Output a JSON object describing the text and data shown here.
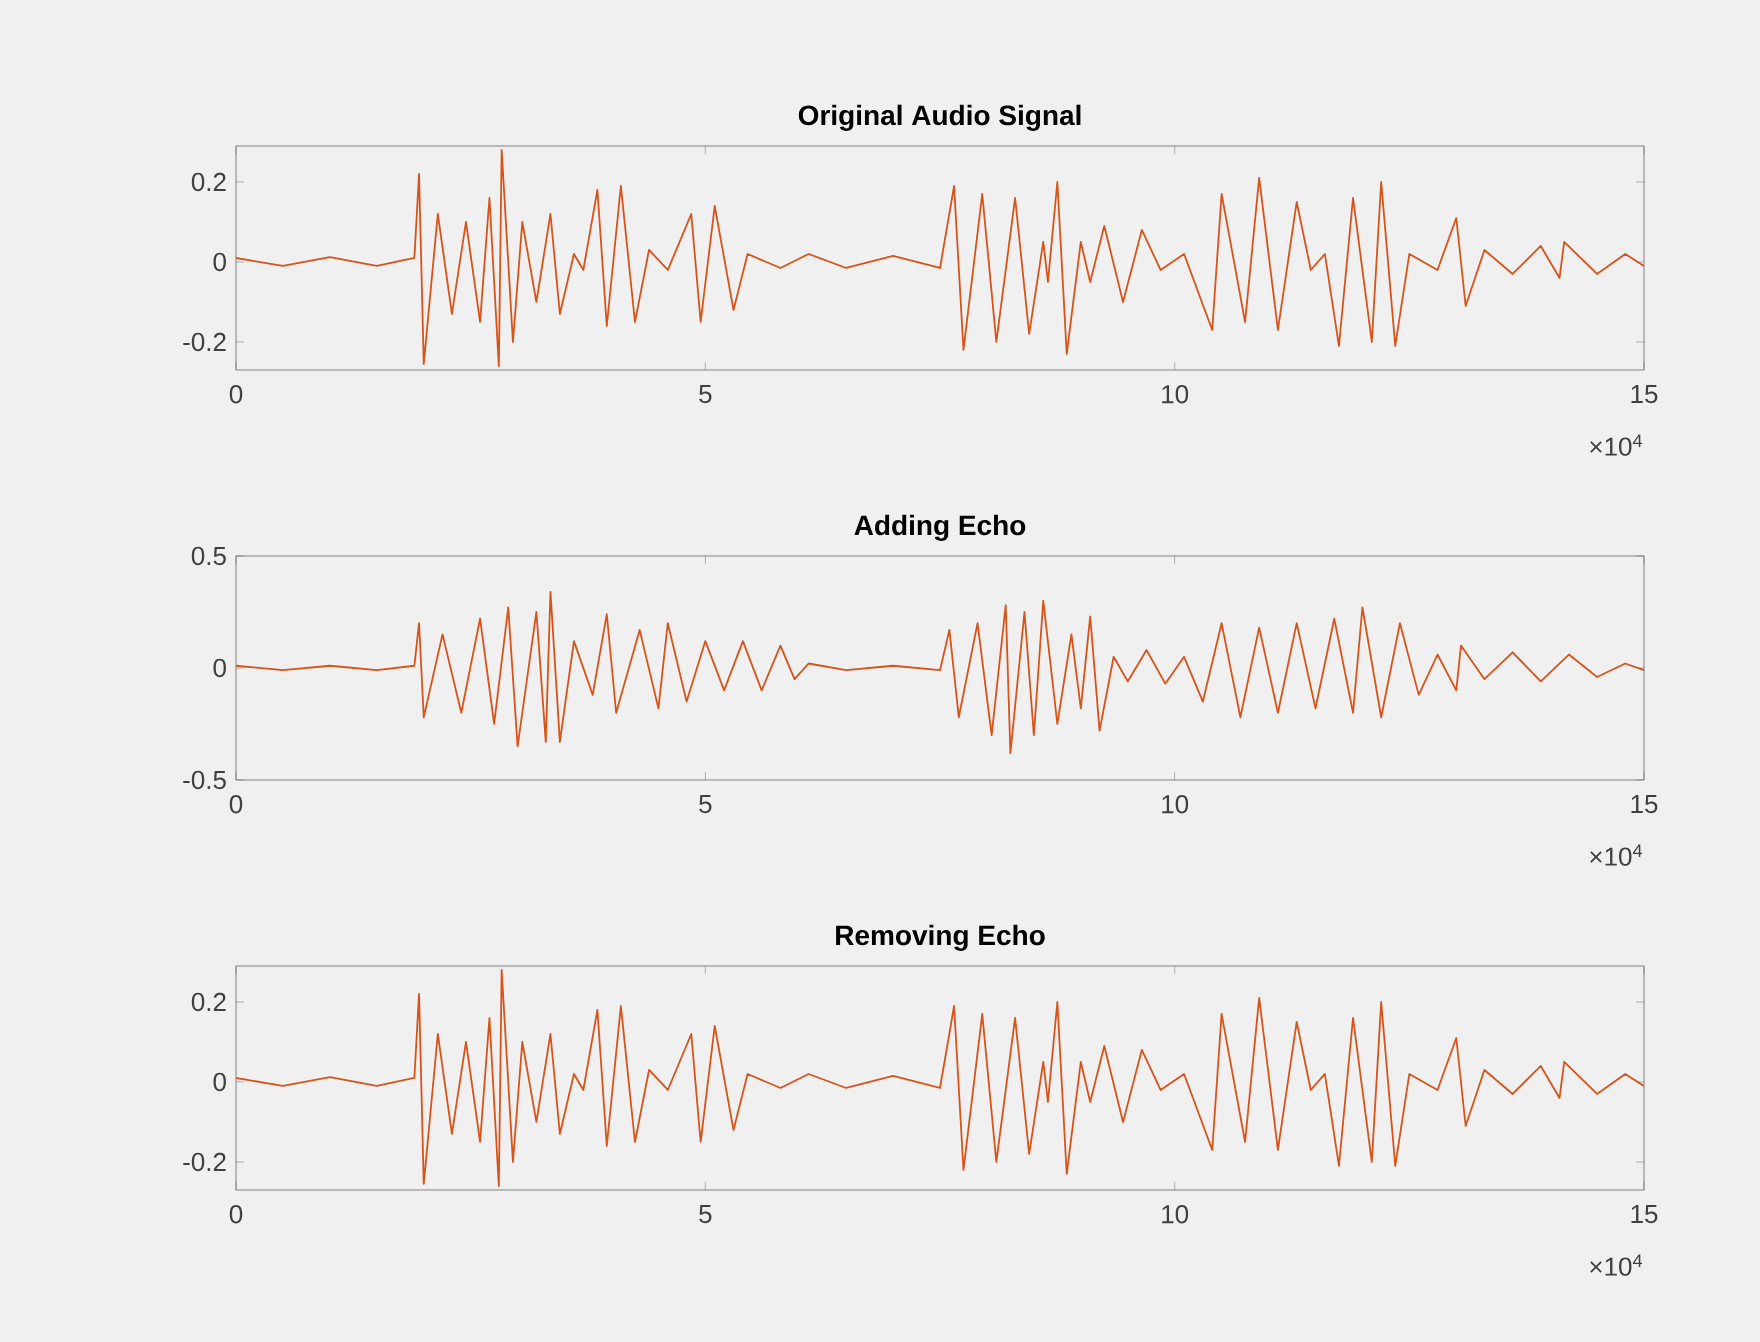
{
  "chart_data": [
    {
      "type": "line",
      "title": "Original Audio Signal",
      "xlim": [
        0,
        15
      ],
      "xticks": [
        0,
        5,
        10,
        15
      ],
      "ylim": [
        -0.27,
        0.29
      ],
      "yticks": [
        -0.2,
        0,
        0.2
      ],
      "annotations": [
        "×10$^{4}$"
      ],
      "series": [
        {
          "color": "#d95319",
          "x": [
            0,
            0.5,
            1.0,
            1.5,
            1.9,
            1.95,
            2.0,
            2.15,
            2.3,
            2.45,
            2.6,
            2.7,
            2.8,
            2.83,
            2.95,
            3.05,
            3.2,
            3.35,
            3.45,
            3.6,
            3.7,
            3.85,
            3.95,
            4.1,
            4.25,
            4.4,
            4.6,
            4.85,
            4.95,
            5.1,
            5.3,
            5.45,
            5.8,
            6.1,
            6.5,
            7.0,
            7.5,
            7.65,
            7.75,
            7.95,
            8.1,
            8.3,
            8.45,
            8.6,
            8.65,
            8.75,
            8.85,
            9.0,
            9.1,
            9.25,
            9.45,
            9.65,
            9.85,
            10.1,
            10.4,
            10.5,
            10.75,
            10.9,
            11.1,
            11.3,
            11.45,
            11.6,
            11.75,
            11.9,
            12.1,
            12.2,
            12.35,
            12.5,
            12.8,
            13.0,
            13.1,
            13.3,
            13.6,
            13.9,
            14.1,
            14.15,
            14.5,
            14.8,
            15.0
          ],
          "values": [
            0.01,
            -0.01,
            0.012,
            -0.01,
            0.01,
            0.22,
            -0.255,
            0.12,
            -0.13,
            0.1,
            -0.15,
            0.16,
            -0.26,
            0.28,
            -0.2,
            0.1,
            -0.1,
            0.12,
            -0.13,
            0.02,
            -0.02,
            0.18,
            -0.16,
            0.19,
            -0.15,
            0.03,
            -0.02,
            0.12,
            -0.15,
            0.14,
            -0.12,
            0.02,
            -0.015,
            0.02,
            -0.015,
            0.015,
            -0.015,
            0.19,
            -0.22,
            0.17,
            -0.2,
            0.16,
            -0.18,
            0.05,
            -0.05,
            0.2,
            -0.23,
            0.05,
            -0.05,
            0.09,
            -0.1,
            0.08,
            -0.02,
            0.02,
            -0.17,
            0.17,
            -0.15,
            0.21,
            -0.17,
            0.15,
            -0.02,
            0.02,
            -0.21,
            0.16,
            -0.2,
            0.2,
            -0.21,
            0.02,
            -0.02,
            0.11,
            -0.11,
            0.03,
            -0.03,
            0.04,
            -0.04,
            0.05,
            -0.03,
            0.02,
            -0.01
          ]
        }
      ]
    },
    {
      "type": "line",
      "title": "Adding Echo",
      "xlim": [
        0,
        15
      ],
      "xticks": [
        0,
        5,
        10,
        15
      ],
      "ylim": [
        -0.5,
        0.5
      ],
      "yticks": [
        -0.5,
        0,
        0.5
      ],
      "annotations": [
        "×10$^{4}$"
      ],
      "series": [
        {
          "color": "#d95319",
          "x": [
            0,
            0.5,
            1.0,
            1.5,
            1.9,
            1.95,
            2.0,
            2.2,
            2.4,
            2.6,
            2.75,
            2.9,
            3.0,
            3.2,
            3.3,
            3.35,
            3.45,
            3.6,
            3.8,
            3.95,
            4.05,
            4.3,
            4.5,
            4.6,
            4.8,
            5.0,
            5.2,
            5.4,
            5.6,
            5.8,
            5.95,
            6.1,
            6.5,
            7.0,
            7.5,
            7.6,
            7.7,
            7.9,
            8.05,
            8.2,
            8.25,
            8.4,
            8.5,
            8.6,
            8.75,
            8.9,
            9.0,
            9.1,
            9.2,
            9.35,
            9.5,
            9.7,
            9.9,
            10.1,
            10.3,
            10.5,
            10.7,
            10.9,
            11.1,
            11.3,
            11.5,
            11.7,
            11.9,
            12.0,
            12.2,
            12.4,
            12.6,
            12.8,
            13.0,
            13.05,
            13.3,
            13.6,
            13.9,
            14.2,
            14.5,
            14.8,
            15.0
          ],
          "values": [
            0.01,
            -0.01,
            0.01,
            -0.01,
            0.01,
            0.2,
            -0.22,
            0.15,
            -0.2,
            0.22,
            -0.25,
            0.27,
            -0.35,
            0.25,
            -0.33,
            0.34,
            -0.33,
            0.12,
            -0.12,
            0.24,
            -0.2,
            0.17,
            -0.18,
            0.2,
            -0.15,
            0.12,
            -0.1,
            0.12,
            -0.1,
            0.1,
            -0.05,
            0.02,
            -0.01,
            0.01,
            -0.01,
            0.17,
            -0.22,
            0.2,
            -0.3,
            0.28,
            -0.38,
            0.25,
            -0.3,
            0.3,
            -0.25,
            0.15,
            -0.18,
            0.23,
            -0.28,
            0.05,
            -0.06,
            0.08,
            -0.07,
            0.05,
            -0.15,
            0.2,
            -0.22,
            0.18,
            -0.2,
            0.2,
            -0.18,
            0.22,
            -0.2,
            0.27,
            -0.22,
            0.2,
            -0.12,
            0.06,
            -0.1,
            0.1,
            -0.05,
            0.07,
            -0.06,
            0.06,
            -0.04,
            0.02,
            -0.01
          ]
        }
      ]
    },
    {
      "type": "line",
      "title": "Removing Echo",
      "xlim": [
        0,
        15
      ],
      "xticks": [
        0,
        5,
        10,
        15
      ],
      "ylim": [
        -0.27,
        0.29
      ],
      "yticks": [
        -0.2,
        0,
        0.2
      ],
      "annotations": [
        "×10$^{4}$"
      ],
      "series": [
        {
          "color": "#d95319",
          "x": [
            0,
            0.5,
            1.0,
            1.5,
            1.9,
            1.95,
            2.0,
            2.15,
            2.3,
            2.45,
            2.6,
            2.7,
            2.8,
            2.83,
            2.95,
            3.05,
            3.2,
            3.35,
            3.45,
            3.6,
            3.7,
            3.85,
            3.95,
            4.1,
            4.25,
            4.4,
            4.6,
            4.85,
            4.95,
            5.1,
            5.3,
            5.45,
            5.8,
            6.1,
            6.5,
            7.0,
            7.5,
            7.65,
            7.75,
            7.95,
            8.1,
            8.3,
            8.45,
            8.6,
            8.65,
            8.75,
            8.85,
            9.0,
            9.1,
            9.25,
            9.45,
            9.65,
            9.85,
            10.1,
            10.4,
            10.5,
            10.75,
            10.9,
            11.1,
            11.3,
            11.45,
            11.6,
            11.75,
            11.9,
            12.1,
            12.2,
            12.35,
            12.5,
            12.8,
            13.0,
            13.1,
            13.3,
            13.6,
            13.9,
            14.1,
            14.15,
            14.5,
            14.8,
            15.0
          ],
          "values": [
            0.01,
            -0.01,
            0.012,
            -0.01,
            0.01,
            0.22,
            -0.255,
            0.12,
            -0.13,
            0.1,
            -0.15,
            0.16,
            -0.26,
            0.28,
            -0.2,
            0.1,
            -0.1,
            0.12,
            -0.13,
            0.02,
            -0.02,
            0.18,
            -0.16,
            0.19,
            -0.15,
            0.03,
            -0.02,
            0.12,
            -0.15,
            0.14,
            -0.12,
            0.02,
            -0.015,
            0.02,
            -0.015,
            0.015,
            -0.015,
            0.19,
            -0.22,
            0.17,
            -0.2,
            0.16,
            -0.18,
            0.05,
            -0.05,
            0.2,
            -0.23,
            0.05,
            -0.05,
            0.09,
            -0.1,
            0.08,
            -0.02,
            0.02,
            -0.17,
            0.17,
            -0.15,
            0.21,
            -0.17,
            0.15,
            -0.02,
            0.02,
            -0.21,
            0.16,
            -0.2,
            0.2,
            -0.21,
            0.02,
            -0.02,
            0.11,
            -0.11,
            0.03,
            -0.03,
            0.04,
            -0.04,
            0.05,
            -0.03,
            0.02,
            -0.01
          ]
        }
      ]
    }
  ]
}
